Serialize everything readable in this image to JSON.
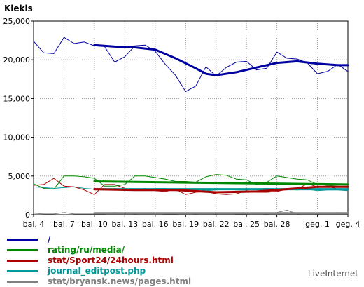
{
  "chart_data": {
    "type": "line",
    "title": "Kiekis",
    "xlabel": "",
    "ylabel": "",
    "ylim": [
      0,
      25000
    ],
    "yticks": [
      0,
      5000,
      10000,
      15000,
      20000,
      25000
    ],
    "ytick_labels": [
      "0",
      "5,000",
      "10,000",
      "15,000",
      "20,000",
      "25,000"
    ],
    "xlim": [
      4,
      35
    ],
    "xticks": [
      4,
      7,
      10,
      13,
      16,
      19,
      22,
      25,
      28,
      32,
      35
    ],
    "xtick_labels": [
      "bal. 4",
      "bal. 7",
      "bal. 10",
      "bal. 13",
      "bal. 16",
      "bal. 19",
      "bal. 22",
      "bal. 25",
      "bal. 28",
      "geg. 1",
      "geg. 4"
    ],
    "grid": true,
    "legend_position": "bottom",
    "series": [
      {
        "name": "/",
        "color": "#0000a0",
        "x": [
          4,
          5,
          6,
          7,
          8,
          9,
          10,
          11,
          12,
          13,
          14,
          15,
          16,
          17,
          18,
          19,
          20,
          21,
          22,
          23,
          24,
          25,
          26,
          27,
          28,
          29,
          30,
          31,
          32,
          33,
          34,
          35
        ],
        "values": [
          22400,
          20900,
          20800,
          22900,
          22100,
          22300,
          21800,
          21700,
          19700,
          20400,
          21800,
          21900,
          21100,
          19400,
          18000,
          15900,
          16600,
          19100,
          17900,
          19000,
          19700,
          19800,
          18700,
          18900,
          21000,
          20200,
          20100,
          19600,
          18200,
          18500,
          19400,
          18500
        ],
        "smooth": {
          "x": [
            10,
            12,
            14,
            16,
            18,
            20,
            21,
            22,
            24,
            26,
            28,
            30,
            32,
            34,
            35
          ],
          "values": [
            21900,
            21700,
            21600,
            21300,
            20200,
            18900,
            18200,
            18000,
            18400,
            19000,
            19600,
            19800,
            19500,
            19300,
            19300
          ]
        }
      },
      {
        "name": "rating/ru/media/",
        "color": "#008800",
        "x": [
          4,
          5,
          6,
          7,
          8,
          9,
          10,
          11,
          12,
          13,
          14,
          15,
          16,
          17,
          18,
          19,
          20,
          21,
          22,
          23,
          24,
          25,
          26,
          27,
          28,
          29,
          30,
          31,
          32,
          33,
          34,
          35
        ],
        "values": [
          4000,
          3400,
          3300,
          5000,
          5000,
          4900,
          4700,
          3700,
          3700,
          3900,
          5000,
          5000,
          4800,
          4600,
          4300,
          4300,
          4200,
          4900,
          5200,
          5100,
          4600,
          4500,
          3900,
          4200,
          5000,
          4800,
          4600,
          4500,
          3900,
          3800,
          3700,
          3500
        ],
        "smooth": {
          "x": [
            10,
            35
          ],
          "values": [
            4300,
            3900
          ]
        }
      },
      {
        "name": "stat/Sport24/24hours.html",
        "color": "#aa0000",
        "x": [
          4,
          5,
          6,
          7,
          8,
          9,
          10,
          11,
          12,
          13,
          14,
          15,
          16,
          17,
          18,
          19,
          20,
          21,
          22,
          23,
          24,
          25,
          26,
          27,
          28,
          29,
          30,
          31,
          32,
          33,
          34,
          35
        ],
        "values": [
          3800,
          3900,
          4700,
          3700,
          3600,
          3200,
          2600,
          3900,
          3900,
          3400,
          3200,
          3400,
          3100,
          3000,
          3300,
          2600,
          2900,
          3000,
          2700,
          2600,
          2700,
          3100,
          2900,
          2900,
          3000,
          3300,
          3300,
          4000,
          3600,
          3700,
          3300,
          3200
        ],
        "smooth": {
          "x": [
            10,
            14,
            18,
            22,
            26,
            30,
            32,
            35
          ],
          "values": [
            3300,
            3200,
            3200,
            2900,
            3000,
            3400,
            3600,
            3600
          ]
        }
      },
      {
        "name": "journal_editpost.php",
        "color": "#009999",
        "x": [
          4,
          5,
          6,
          7,
          8,
          9,
          10,
          11,
          12,
          13,
          14,
          15,
          16,
          17,
          18,
          19,
          20,
          21,
          22,
          23,
          24,
          25,
          26,
          27,
          28,
          29,
          30,
          31,
          32,
          33,
          34,
          35
        ],
        "values": [
          3600,
          3500,
          3400,
          3500,
          3600,
          3400,
          3300,
          3200,
          3300,
          3100,
          3300,
          3200,
          3400,
          3400,
          3200,
          3200,
          3300,
          3100,
          3200,
          3300,
          3200,
          3200,
          3300,
          3400,
          3300,
          3300,
          3200,
          3300,
          3100,
          3200,
          3200,
          3100
        ],
        "smooth": {
          "x": [
            10,
            35
          ],
          "values": [
            3300,
            3300
          ]
        }
      },
      {
        "name": "stat/bryansk.news/pages.html",
        "color": "#808080",
        "x": [
          4,
          5,
          6,
          7,
          8,
          9,
          10,
          11,
          12,
          13,
          14,
          15,
          16,
          17,
          18,
          19,
          20,
          21,
          22,
          23,
          24,
          25,
          26,
          27,
          28,
          29,
          30,
          31,
          32,
          33,
          34,
          35
        ],
        "values": [
          200,
          100,
          100,
          300,
          100,
          100,
          100,
          100,
          300,
          200,
          100,
          200,
          200,
          100,
          100,
          200,
          100,
          200,
          100,
          200,
          100,
          100,
          200,
          100,
          300,
          600,
          100,
          200,
          100,
          200,
          300,
          100
        ],
        "smooth": {
          "x": [
            10,
            35
          ],
          "values": [
            200,
            200
          ]
        }
      }
    ]
  },
  "brand": "LiveInternet"
}
